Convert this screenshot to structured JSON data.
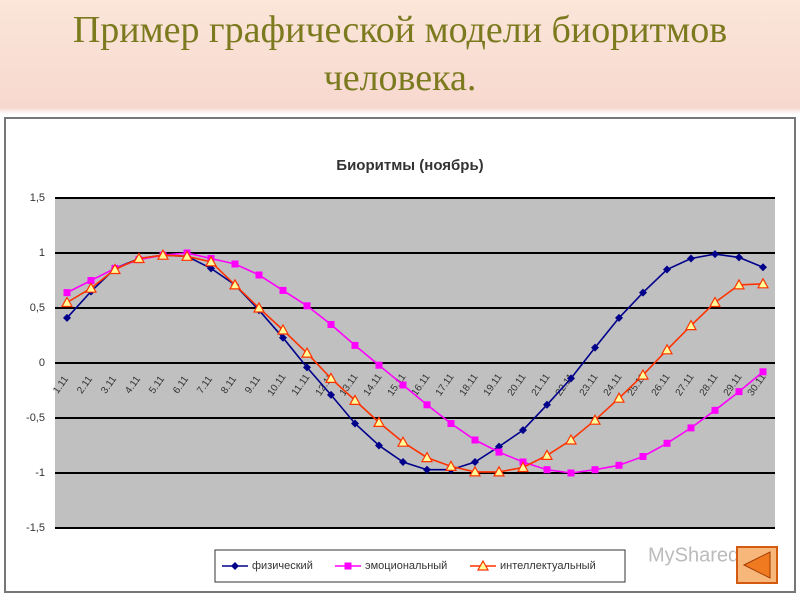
{
  "slide_title": "Пример графической модели биоритмов человека.",
  "watermark": "MyShared",
  "chart_data": {
    "type": "line",
    "title": "Биоритмы (ноябрь)",
    "categories": [
      "1.11",
      "2.11",
      "3.11",
      "4.11",
      "5.11",
      "6.11",
      "7.11",
      "8.11",
      "9.11",
      "10.11",
      "11.11",
      "12.11",
      "13.11",
      "14.11",
      "15.11",
      "16.11",
      "17.11",
      "18.11",
      "19.11",
      "20.11",
      "21.11",
      "22.11",
      "23.11",
      "24.11",
      "25.11",
      "26.11",
      "27.11",
      "28.11",
      "29.11",
      "30.11"
    ],
    "series": [
      {
        "name": "физический",
        "color": "#00008b",
        "marker": "diamond",
        "values": [
          0.41,
          0.65,
          0.86,
          0.95,
          0.98,
          0.97,
          0.86,
          0.71,
          0.48,
          0.23,
          -0.04,
          -0.29,
          -0.55,
          -0.75,
          -0.9,
          -0.97,
          -0.97,
          -0.9,
          -0.76,
          -0.61,
          -0.38,
          -0.14,
          0.14,
          0.41,
          0.64,
          0.85,
          0.95,
          0.99,
          0.96,
          0.87
        ]
      },
      {
        "name": "эмоциональный",
        "color": "#ff00ff",
        "marker": "square",
        "values": [
          0.64,
          0.75,
          0.86,
          0.94,
          0.98,
          1.0,
          0.95,
          0.9,
          0.8,
          0.66,
          0.52,
          0.35,
          0.16,
          -0.02,
          -0.2,
          -0.38,
          -0.55,
          -0.7,
          -0.81,
          -0.9,
          -0.97,
          -1.0,
          -0.97,
          -0.93,
          -0.85,
          -0.73,
          -0.59,
          -0.43,
          -0.26,
          -0.08
        ]
      },
      {
        "name": "интеллектуальный",
        "color": "#ff3300",
        "marker": "triangle",
        "values": [
          0.55,
          0.68,
          0.85,
          0.95,
          0.98,
          0.97,
          0.92,
          0.71,
          0.5,
          0.3,
          0.09,
          -0.14,
          -0.34,
          -0.54,
          -0.72,
          -0.86,
          -0.94,
          -0.99,
          -0.99,
          -0.95,
          -0.84,
          -0.7,
          -0.52,
          -0.32,
          -0.11,
          0.12,
          0.34,
          0.55,
          0.71,
          0.72
        ]
      }
    ],
    "ylim": [
      -1.5,
      1.5
    ],
    "yticks": [
      {
        "value": -1.5,
        "label": "-1,5"
      },
      -1,
      {
        "value": -0.5,
        "label": "-0,5"
      },
      0,
      {
        "value": 0.5,
        "label": "0,5"
      },
      1,
      {
        "value": 1.5,
        "label": "1,5"
      }
    ],
    "grid": true,
    "legend": "bottom"
  }
}
